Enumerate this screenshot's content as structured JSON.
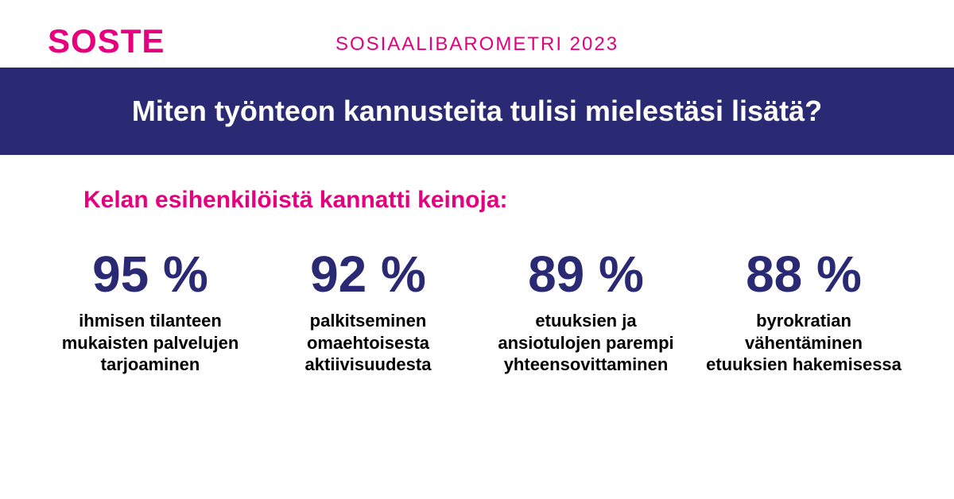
{
  "colors": {
    "brand_pink": "#e5007d",
    "brand_navy": "#2a2a74",
    "banner_bg": "#2a2a74",
    "banner_text": "#ffffff",
    "body_text": "#000000",
    "background": "#ffffff"
  },
  "typography": {
    "logo_fontsize": 42,
    "subtitle_fontsize": 24,
    "banner_title_fontsize": 36,
    "lead_fontsize": 30,
    "stat_value_fontsize": 64,
    "stat_label_fontsize": 22
  },
  "header": {
    "logo": "SOSTE",
    "subtitle": "SOSIAALIBAROMETRI 2023"
  },
  "banner": {
    "title": "Miten työnteon kannusteita tulisi mielestäsi lisätä?"
  },
  "lead": "Kelan esihenkilöistä kannatti keinoja:",
  "stats": [
    {
      "value": "95 %",
      "label": "ihmisen tilanteen mukaisten palvelujen tarjoaminen"
    },
    {
      "value": "92 %",
      "label": "palkitseminen omaehtoisesta aktiivisuudesta"
    },
    {
      "value": "89 %",
      "label": "etuuksien ja ansiotulojen parempi yhteen­sovittaminen"
    },
    {
      "value": "88 %",
      "label": "byrokratian vähentäminen etuuksien hakemisessa"
    }
  ]
}
